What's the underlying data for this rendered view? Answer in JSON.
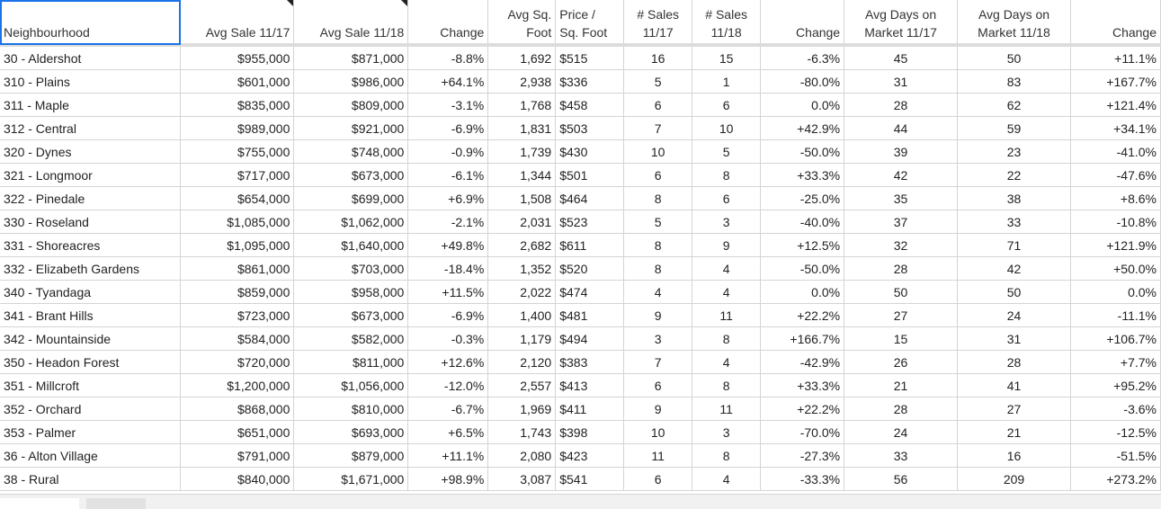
{
  "headers": [
    {
      "label": "Neighbourhood",
      "align": "l",
      "note": false
    },
    {
      "label": "Avg Sale 11/17",
      "align": "r",
      "note": true
    },
    {
      "label": "Avg Sale 11/18",
      "align": "r",
      "note": true
    },
    {
      "label": "Change",
      "align": "r",
      "note": false
    },
    {
      "label": "Avg Sq. Foot",
      "align": "r",
      "note": false
    },
    {
      "label": "Price / Sq. Foot",
      "align": "l",
      "note": false
    },
    {
      "label": "# Sales 11/17",
      "align": "c",
      "note": false
    },
    {
      "label": "# Sales 11/18",
      "align": "c",
      "note": false
    },
    {
      "label": "Change",
      "align": "r",
      "note": false
    },
    {
      "label": "Avg Days on Market 11/17",
      "align": "c",
      "note": false
    },
    {
      "label": "Avg Days on Market 11/18",
      "align": "c",
      "note": false
    },
    {
      "label": "Change",
      "align": "r",
      "note": false
    }
  ],
  "header_lines": [
    [
      "Neighbourhood"
    ],
    [
      "Avg Sale 11/17"
    ],
    [
      "Avg Sale 11/18"
    ],
    [
      "Change"
    ],
    [
      "Avg Sq.",
      "Foot"
    ],
    [
      "Price /",
      "Sq. Foot"
    ],
    [
      "# Sales",
      "11/17"
    ],
    [
      "# Sales",
      "11/18"
    ],
    [
      "Change"
    ],
    [
      "Avg Days on",
      "Market 11/17"
    ],
    [
      "Avg Days on",
      "Market 11/18"
    ],
    [
      "Change"
    ]
  ],
  "rows": [
    [
      "30 - Aldershot",
      "$955,000",
      "$871,000",
      "-8.8%",
      "1,692",
      "$515",
      "16",
      "15",
      "-6.3%",
      "45",
      "50",
      "+11.1%"
    ],
    [
      "310 - Plains",
      "$601,000",
      "$986,000",
      "+64.1%",
      "2,938",
      "$336",
      "5",
      "1",
      "-80.0%",
      "31",
      "83",
      "+167.7%"
    ],
    [
      "311 - Maple",
      "$835,000",
      "$809,000",
      "-3.1%",
      "1,768",
      "$458",
      "6",
      "6",
      "0.0%",
      "28",
      "62",
      "+121.4%"
    ],
    [
      "312 - Central",
      "$989,000",
      "$921,000",
      "-6.9%",
      "1,831",
      "$503",
      "7",
      "10",
      "+42.9%",
      "44",
      "59",
      "+34.1%"
    ],
    [
      "320 - Dynes",
      "$755,000",
      "$748,000",
      "-0.9%",
      "1,739",
      "$430",
      "10",
      "5",
      "-50.0%",
      "39",
      "23",
      "-41.0%"
    ],
    [
      "321 - Longmoor",
      "$717,000",
      "$673,000",
      "-6.1%",
      "1,344",
      "$501",
      "6",
      "8",
      "+33.3%",
      "42",
      "22",
      "-47.6%"
    ],
    [
      "322 - Pinedale",
      "$654,000",
      "$699,000",
      "+6.9%",
      "1,508",
      "$464",
      "8",
      "6",
      "-25.0%",
      "35",
      "38",
      "+8.6%"
    ],
    [
      "330 - Roseland",
      "$1,085,000",
      "$1,062,000",
      "-2.1%",
      "2,031",
      "$523",
      "5",
      "3",
      "-40.0%",
      "37",
      "33",
      "-10.8%"
    ],
    [
      "331 - Shoreacres",
      "$1,095,000",
      "$1,640,000",
      "+49.8%",
      "2,682",
      "$611",
      "8",
      "9",
      "+12.5%",
      "32",
      "71",
      "+121.9%"
    ],
    [
      "332 - Elizabeth Gardens",
      "$861,000",
      "$703,000",
      "-18.4%",
      "1,352",
      "$520",
      "8",
      "4",
      "-50.0%",
      "28",
      "42",
      "+50.0%"
    ],
    [
      "340 - Tyandaga",
      "$859,000",
      "$958,000",
      "+11.5%",
      "2,022",
      "$474",
      "4",
      "4",
      "0.0%",
      "50",
      "50",
      "0.0%"
    ],
    [
      "341 - Brant Hills",
      "$723,000",
      "$673,000",
      "-6.9%",
      "1,400",
      "$481",
      "9",
      "11",
      "+22.2%",
      "27",
      "24",
      "-11.1%"
    ],
    [
      "342 - Mountainside",
      "$584,000",
      "$582,000",
      "-0.3%",
      "1,179",
      "$494",
      "3",
      "8",
      "+166.7%",
      "15",
      "31",
      "+106.7%"
    ],
    [
      "350 - Headon Forest",
      "$720,000",
      "$811,000",
      "+12.6%",
      "2,120",
      "$383",
      "7",
      "4",
      "-42.9%",
      "26",
      "28",
      "+7.7%"
    ],
    [
      "351 - Millcroft",
      "$1,200,000",
      "$1,056,000",
      "-12.0%",
      "2,557",
      "$413",
      "6",
      "8",
      "+33.3%",
      "21",
      "41",
      "+95.2%"
    ],
    [
      "352 - Orchard",
      "$868,000",
      "$810,000",
      "-6.7%",
      "1,969",
      "$411",
      "9",
      "11",
      "+22.2%",
      "28",
      "27",
      "-3.6%"
    ],
    [
      "353 - Palmer",
      "$651,000",
      "$693,000",
      "+6.5%",
      "1,743",
      "$398",
      "10",
      "3",
      "-70.0%",
      "24",
      "21",
      "-12.5%"
    ],
    [
      "36 - Alton Village",
      "$791,000",
      "$879,000",
      "+11.1%",
      "2,080",
      "$423",
      "11",
      "8",
      "-27.3%",
      "33",
      "16",
      "-51.5%"
    ],
    [
      "38 - Rural",
      "$840,000",
      "$1,671,000",
      "+98.9%",
      "3,087",
      "$541",
      "6",
      "4",
      "-33.3%",
      "56",
      "209",
      "+273.2%"
    ]
  ],
  "column_align": [
    "l",
    "r",
    "r",
    "r",
    "r",
    "l",
    "c",
    "c",
    "r",
    "c",
    "c",
    "r"
  ],
  "colors": {
    "selection": "#1a73e8",
    "grid": "#d4d4d4",
    "header_divider": "#dcdcdc"
  }
}
